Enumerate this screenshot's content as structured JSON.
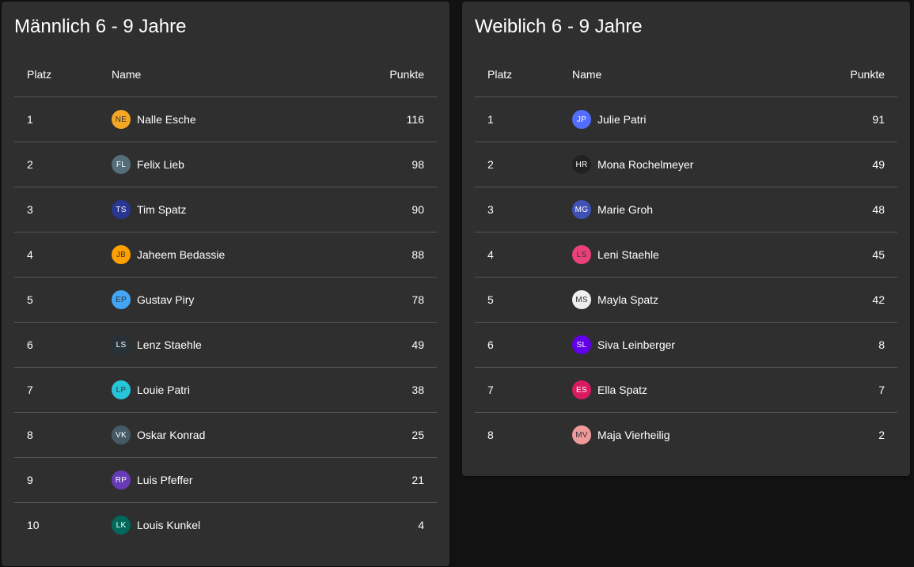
{
  "left": {
    "title": "Männlich 6 - 9 Jahre",
    "headers": {
      "platz": "Platz",
      "name": "Name",
      "punkte": "Punkte"
    },
    "rows": [
      {
        "platz": "1",
        "initials": "NE",
        "name": "Nalle Esche",
        "punkte": "116",
        "color": "#f5a623",
        "text_color": "#333333"
      },
      {
        "platz": "2",
        "initials": "FL",
        "name": "Felix Lieb",
        "punkte": "98",
        "color": "#546e7a",
        "text_color": "#ffffff"
      },
      {
        "platz": "3",
        "initials": "TS",
        "name": "Tim Spatz",
        "punkte": "90",
        "color": "#283593",
        "text_color": "#ffffff"
      },
      {
        "platz": "4",
        "initials": "JB",
        "name": "Jaheem Bedassie",
        "punkte": "88",
        "color": "#ffa000",
        "text_color": "#333333"
      },
      {
        "platz": "5",
        "initials": "EP",
        "name": "Gustav Piry",
        "punkte": "78",
        "color": "#42a5f5",
        "text_color": "#333333"
      },
      {
        "platz": "6",
        "initials": "LS",
        "name": "Lenz Staehle",
        "punkte": "49",
        "color": "#263238",
        "text_color": "#ffffff"
      },
      {
        "platz": "7",
        "initials": "LP",
        "name": "Louie Patri",
        "punkte": "38",
        "color": "#26c6da",
        "text_color": "#333333"
      },
      {
        "platz": "8",
        "initials": "VK",
        "name": "Oskar Konrad",
        "punkte": "25",
        "color": "#455a64",
        "text_color": "#ffffff"
      },
      {
        "platz": "9",
        "initials": "RP",
        "name": "Luis Pfeffer",
        "punkte": "21",
        "color": "#673ab7",
        "text_color": "#ffffff"
      },
      {
        "platz": "10",
        "initials": "LK",
        "name": "Louis Kunkel",
        "punkte": "4",
        "color": "#00695c",
        "text_color": "#ffffff"
      }
    ]
  },
  "right": {
    "title": "Weiblich 6 - 9 Jahre",
    "headers": {
      "platz": "Platz",
      "name": "Name",
      "punkte": "Punkte"
    },
    "rows": [
      {
        "platz": "1",
        "initials": "JP",
        "name": "Julie Patri",
        "punkte": "91",
        "color": "#536dfe",
        "text_color": "#ffffff"
      },
      {
        "platz": "2",
        "initials": "HR",
        "name": "Mona Rochelmeyer",
        "punkte": "49",
        "color": "#212121",
        "text_color": "#ffffff"
      },
      {
        "platz": "3",
        "initials": "MG",
        "name": "Marie Groh",
        "punkte": "48",
        "color": "#3f51b5",
        "text_color": "#ffffff"
      },
      {
        "platz": "4",
        "initials": "LS",
        "name": "Leni Staehle",
        "punkte": "45",
        "color": "#ec407a",
        "text_color": "#333333"
      },
      {
        "platz": "5",
        "initials": "MS",
        "name": "Mayla Spatz",
        "punkte": "42",
        "color": "#eeeeee",
        "text_color": "#333333"
      },
      {
        "platz": "6",
        "initials": "SL",
        "name": "Siva Leinberger",
        "punkte": "8",
        "color": "#6200ea",
        "text_color": "#ffffff"
      },
      {
        "platz": "7",
        "initials": "ES",
        "name": "Ella Spatz",
        "punkte": "7",
        "color": "#d81b60",
        "text_color": "#ffffff"
      },
      {
        "platz": "8",
        "initials": "MV",
        "name": "Maja Vierheilig",
        "punkte": "2",
        "color": "#ef9a9a",
        "text_color": "#333333"
      }
    ]
  }
}
